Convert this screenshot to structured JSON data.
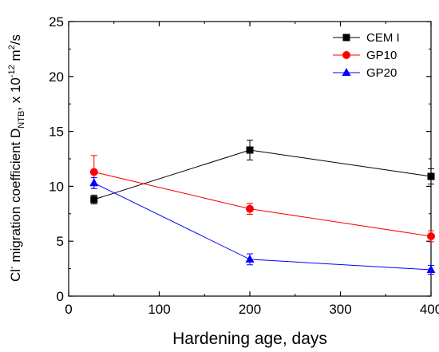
{
  "chart_data": {
    "type": "line",
    "xlabel": "Hardening age, days",
    "ylabel": {
      "main": "Cl",
      "sup1": "-",
      "mid": " migration coefficient D",
      "sub": "NTB",
      "mid2": ", x 10",
      "sup2": "-12",
      "unit": " m",
      "sup3": "2",
      "unit2": "/s"
    },
    "xlim": [
      0,
      400
    ],
    "ylim": [
      0,
      25
    ],
    "xticks": [
      0,
      100,
      200,
      300,
      400
    ],
    "yticks": [
      0,
      5,
      10,
      15,
      20,
      25
    ],
    "grid": false,
    "legend_position": "top-right",
    "series": [
      {
        "name": "CEM I",
        "color": "#000000",
        "marker": "square",
        "x": [
          28,
          200,
          400
        ],
        "y": [
          8.8,
          13.3,
          10.9
        ],
        "err": [
          0.4,
          0.9,
          0.7
        ]
      },
      {
        "name": "GP10",
        "color": "#ff0000",
        "marker": "circle",
        "x": [
          28,
          200,
          400
        ],
        "y": [
          11.3,
          7.95,
          5.45
        ],
        "err": [
          1.5,
          0.5,
          0.5
        ]
      },
      {
        "name": "GP20",
        "color": "#0000ff",
        "marker": "triangle",
        "x": [
          28,
          200,
          400
        ],
        "y": [
          10.3,
          3.35,
          2.4
        ],
        "err": [
          0.5,
          0.5,
          0.4
        ]
      }
    ]
  }
}
